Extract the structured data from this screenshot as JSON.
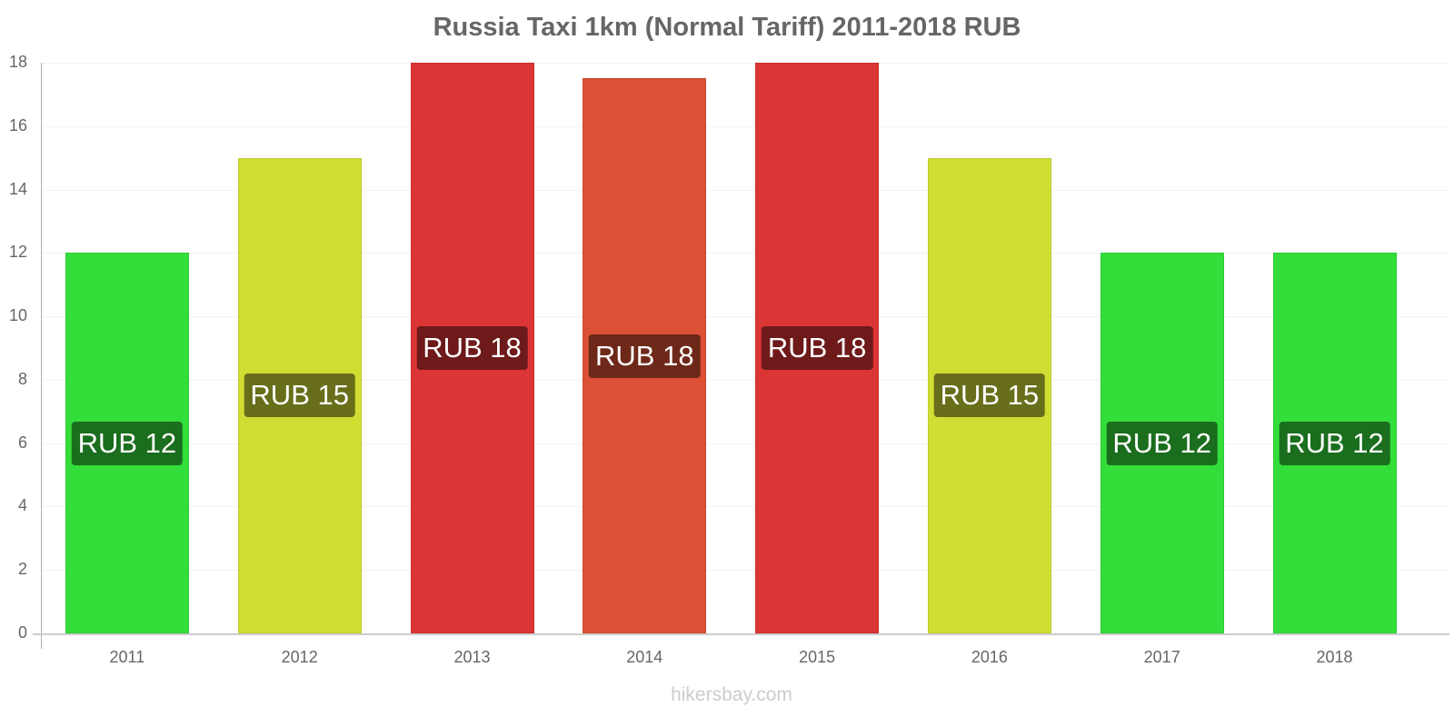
{
  "chart_data": {
    "type": "bar",
    "title": "Russia Taxi 1km (Normal Tariff) 2011-2018 RUB",
    "xlabel": "",
    "ylabel": "",
    "categories": [
      "2011",
      "2012",
      "2013",
      "2014",
      "2015",
      "2016",
      "2017",
      "2018"
    ],
    "values": [
      12,
      15,
      18,
      17.5,
      18,
      15,
      12,
      12
    ],
    "data_labels": [
      "RUB 12",
      "RUB 15",
      "RUB 18",
      "RUB 18",
      "RUB 18",
      "RUB 15",
      "RUB 12",
      "RUB 12"
    ],
    "bar_colors": [
      "#33dd3a",
      "#d0dd33",
      "#dc3535",
      "#dc5035",
      "#dc3535",
      "#d0dd33",
      "#33dd3a",
      "#33dd3a"
    ],
    "label_colors": [
      "#1a6e1d",
      "#686e1a",
      "#6e1a1a",
      "#6e281a",
      "#6e1a1a",
      "#686e1a",
      "#1a6e1d",
      "#1a6e1d"
    ],
    "ylim": [
      0,
      18
    ],
    "yticks": [
      "0",
      "2",
      "4",
      "6",
      "8",
      "10",
      "12",
      "14",
      "16",
      "18"
    ],
    "grid": true,
    "legend": null
  },
  "watermark": "hikersbay.com"
}
